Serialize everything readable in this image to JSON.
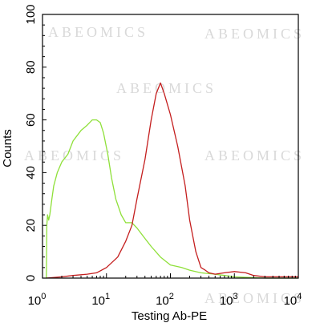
{
  "chart_data": {
    "type": "line",
    "title": "",
    "xlabel": "Testing Ab-PE",
    "ylabel": "Counts",
    "xscale": "log",
    "xlim": [
      1,
      10000
    ],
    "ylim": [
      0,
      100
    ],
    "grid": false,
    "legend": "none",
    "watermark": "ABEOMICS",
    "y_ticks": [
      "0",
      "20",
      "40",
      "60",
      "80",
      "100"
    ],
    "x_ticks": [
      {
        "base": "10",
        "exp": "0"
      },
      {
        "base": "10",
        "exp": "1"
      },
      {
        "base": "10",
        "exp": "2"
      },
      {
        "base": "10",
        "exp": "3"
      },
      {
        "base": "10",
        "exp": "4"
      }
    ],
    "series": [
      {
        "color": "#8fe03a",
        "x": [
          1.15,
          1.17,
          1.2,
          1.25,
          1.3,
          1.4,
          1.5,
          1.7,
          2.0,
          2.5,
          3.0,
          4.0,
          5.0,
          6.0,
          7.0,
          8.0,
          9.0,
          10.5,
          12,
          14,
          17,
          20,
          25,
          30,
          40,
          50,
          70,
          100,
          150,
          200,
          300,
          500,
          700,
          1000,
          1500,
          3000,
          10000
        ],
        "y": [
          0,
          20,
          24,
          22,
          24,
          30,
          35,
          40,
          44,
          47,
          52,
          56,
          58,
          60,
          60,
          59,
          55,
          47,
          38,
          30,
          24,
          21,
          21,
          19,
          15,
          12,
          8,
          5,
          4,
          3,
          2,
          1.5,
          1,
          0.5,
          0.3,
          0,
          0
        ]
      },
      {
        "color": "#c41e1e",
        "x": [
          1.15,
          2.0,
          3.0,
          5.0,
          7.0,
          10,
          15,
          20,
          25,
          30,
          40,
          50,
          60,
          70,
          80,
          100,
          130,
          170,
          200,
          250,
          300,
          350,
          400,
          500,
          700,
          1000,
          1500,
          2000,
          3000,
          5000,
          10000
        ],
        "y": [
          0,
          0.5,
          1,
          1.5,
          2,
          4,
          8,
          14,
          20,
          30,
          45,
          60,
          70,
          74,
          70,
          62,
          50,
          35,
          22,
          10,
          4,
          3,
          2,
          1.5,
          2,
          2.5,
          2,
          1,
          0.5,
          0.5,
          0.5
        ]
      }
    ]
  }
}
